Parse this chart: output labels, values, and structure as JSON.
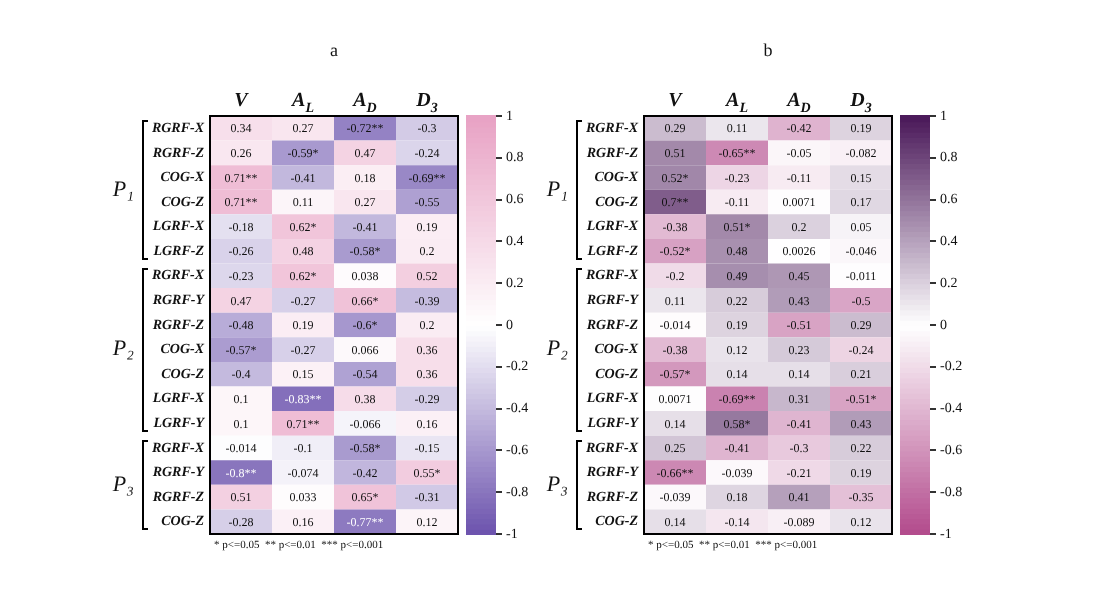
{
  "chart_data": [
    {
      "type": "heatmap",
      "title": "a",
      "categories": [
        "V",
        "A$_{L}$",
        "A$_{D}$",
        "D$_{3}$"
      ],
      "y_categories": [
        "RGRF-X",
        "RGRF-Z",
        "COG-X",
        "COG-Z",
        "LGRF-X",
        "LGRF-Z",
        "RGRF-X",
        "RGRF-Y",
        "RGRF-Z",
        "COG-X",
        "COG-Z",
        "LGRF-X",
        "LGRF-Y",
        "RGRF-X",
        "RGRF-Y",
        "RGRF-Z",
        "COG-Z"
      ],
      "cells": [
        [
          0.34,
          0.27,
          -0.72,
          -0.3
        ],
        [
          0.26,
          -0.59,
          0.47,
          -0.24
        ],
        [
          0.71,
          -0.41,
          0.18,
          -0.69
        ],
        [
          0.71,
          0.11,
          0.27,
          -0.55
        ],
        [
          -0.18,
          0.62,
          -0.41,
          0.19
        ],
        [
          -0.26,
          0.48,
          -0.58,
          0.2
        ],
        [
          -0.23,
          0.62,
          0.038,
          0.52
        ],
        [
          0.47,
          -0.27,
          0.66,
          -0.39
        ],
        [
          -0.48,
          0.19,
          -0.6,
          0.2
        ],
        [
          -0.57,
          -0.27,
          0.066,
          0.36
        ],
        [
          -0.4,
          0.15,
          -0.54,
          0.36
        ],
        [
          0.1,
          -0.83,
          0.38,
          -0.29
        ],
        [
          0.1,
          0.71,
          -0.066,
          0.16
        ],
        [
          -0.014,
          -0.1,
          -0.58,
          -0.15
        ],
        [
          -0.8,
          -0.074,
          -0.42,
          0.55
        ],
        [
          0.51,
          0.033,
          0.65,
          -0.31
        ],
        [
          -0.28,
          0.16,
          -0.77,
          0.12
        ]
      ],
      "cell_labels": [
        [
          "0.34",
          "0.27",
          "-0.72**",
          "-0.3"
        ],
        [
          "0.26",
          "-0.59*",
          "0.47",
          "-0.24"
        ],
        [
          "0.71**",
          "-0.41",
          "0.18",
          "-0.69**"
        ],
        [
          "0.71**",
          "0.11",
          "0.27",
          "-0.55"
        ],
        [
          "-0.18",
          "0.62*",
          "-0.41",
          "0.19"
        ],
        [
          "-0.26",
          "0.48",
          "-0.58*",
          "0.2"
        ],
        [
          "-0.23",
          "0.62*",
          "0.038",
          "0.52"
        ],
        [
          "0.47",
          "-0.27",
          "0.66*",
          "-0.39"
        ],
        [
          "-0.48",
          "0.19",
          "-0.6*",
          "0.2"
        ],
        [
          "-0.57*",
          "-0.27",
          "0.066",
          "0.36"
        ],
        [
          "-0.4",
          "0.15",
          "-0.54",
          "0.36"
        ],
        [
          "0.1",
          "-0.83**",
          "0.38",
          "-0.29"
        ],
        [
          "0.1",
          "0.71**",
          "-0.066",
          "0.16"
        ],
        [
          "-0.014",
          "-0.1",
          "-0.58*",
          "-0.15"
        ],
        [
          "-0.8**",
          "-0.074",
          "-0.42",
          "0.55*"
        ],
        [
          "0.51",
          "0.033",
          "0.65*",
          "-0.31"
        ],
        [
          "-0.28",
          "0.16",
          "-0.77**",
          "0.12"
        ]
      ],
      "clim": [
        -1,
        1
      ],
      "cticks": [
        -1,
        -0.8,
        -0.6,
        -0.4,
        -0.2,
        0,
        0.2,
        0.4,
        0.6,
        0.8,
        1
      ],
      "colors": [
        "#6b52ad",
        "#ffffff",
        "#e8a2c4"
      ],
      "annotations": [
        "P₁",
        "P₂",
        "P₃",
        "* p<=0.05  ** p<=0.01  *** p<=0.001"
      ]
    },
    {
      "type": "heatmap",
      "title": "b",
      "categories": [
        "V",
        "A$_{L}$",
        "A$_{D}$",
        "D$_{3}$"
      ],
      "y_categories": [
        "RGRF-X",
        "RGRF-Z",
        "COG-X",
        "COG-Z",
        "LGRF-X",
        "LGRF-Z",
        "RGRF-X",
        "RGRF-Y",
        "RGRF-Z",
        "COG-X",
        "COG-Z",
        "LGRF-X",
        "LGRF-Y",
        "RGRF-X",
        "RGRF-Y",
        "RGRF-Z",
        "COG-Z"
      ],
      "cells": [
        [
          0.29,
          0.11,
          -0.42,
          0.19
        ],
        [
          0.51,
          -0.65,
          -0.05,
          -0.082
        ],
        [
          0.52,
          -0.23,
          -0.11,
          0.15
        ],
        [
          0.7,
          -0.11,
          0.0071,
          0.17
        ],
        [
          -0.38,
          0.51,
          0.2,
          0.05
        ],
        [
          -0.52,
          0.48,
          0.0026,
          -0.046
        ],
        [
          -0.2,
          0.49,
          0.45,
          -0.011
        ],
        [
          0.11,
          0.22,
          0.43,
          -0.5
        ],
        [
          -0.014,
          0.19,
          -0.51,
          0.29
        ],
        [
          -0.38,
          0.12,
          0.23,
          -0.24
        ],
        [
          -0.57,
          0.14,
          0.14,
          0.21
        ],
        [
          0.0071,
          -0.69,
          0.31,
          -0.51
        ],
        [
          0.14,
          0.58,
          -0.41,
          0.43
        ],
        [
          0.25,
          -0.41,
          -0.3,
          0.22
        ],
        [
          -0.66,
          -0.039,
          -0.21,
          0.19
        ],
        [
          -0.039,
          0.18,
          0.41,
          -0.35
        ],
        [
          0.14,
          -0.14,
          -0.089,
          0.12
        ]
      ],
      "cell_labels": [
        [
          "0.29",
          "0.11",
          "-0.42",
          "0.19"
        ],
        [
          "0.51",
          "-0.65**",
          "-0.05",
          "-0.082"
        ],
        [
          "0.52*",
          "-0.23",
          "-0.11",
          "0.15"
        ],
        [
          "0.7**",
          "-0.11",
          "0.0071",
          "0.17"
        ],
        [
          "-0.38",
          "0.51*",
          "0.2",
          "0.05"
        ],
        [
          "-0.52*",
          "0.48",
          "0.0026",
          "-0.046"
        ],
        [
          "-0.2",
          "0.49",
          "0.45",
          "-0.011"
        ],
        [
          "0.11",
          "0.22",
          "0.43",
          "-0.5"
        ],
        [
          "-0.014",
          "0.19",
          "-0.51",
          "0.29"
        ],
        [
          "-0.38",
          "0.12",
          "0.23",
          "-0.24"
        ],
        [
          "-0.57*",
          "0.14",
          "0.14",
          "0.21"
        ],
        [
          "0.0071",
          "-0.69**",
          "0.31",
          "-0.51*"
        ],
        [
          "0.14",
          "0.58*",
          "-0.41",
          "0.43"
        ],
        [
          "0.25",
          "-0.41",
          "-0.3",
          "0.22"
        ],
        [
          "-0.66**",
          "-0.039",
          "-0.21",
          "0.19"
        ],
        [
          "-0.039",
          "0.18",
          "0.41",
          "-0.35"
        ],
        [
          "0.14",
          "-0.14",
          "-0.089",
          "0.12"
        ]
      ],
      "clim": [
        -1,
        1
      ],
      "cticks": [
        -1,
        -0.8,
        -0.6,
        -0.4,
        -0.2,
        0,
        0.2,
        0.4,
        0.6,
        0.8,
        1
      ],
      "colors": [
        "#b24a8c",
        "#ffffff",
        "#4a1859"
      ],
      "annotations": [
        "P₁",
        "P₂",
        "P₃",
        "* p<=0.05  ** p<=0.01  *** p<=0.001"
      ]
    }
  ]
}
